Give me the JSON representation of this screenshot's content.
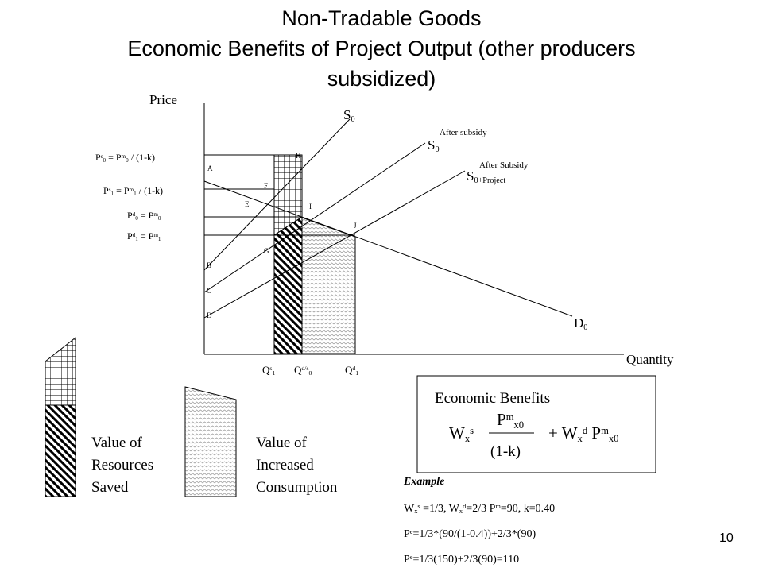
{
  "title": {
    "line1": "Non-Tradable Goods",
    "line2": "Economic Benefits of Project Output (other producers",
    "line3": "subsidized)"
  },
  "axes": {
    "y": "Price",
    "x": "Quantity"
  },
  "curves": {
    "s0": [
      {
        "text": "S"
      },
      {
        "sub": "0"
      }
    ],
    "s0_subsidy": [
      {
        "text": "S"
      },
      {
        "sub": "0"
      }
    ],
    "s0_subsidy_note": "After subsidy",
    "s0_project": [
      {
        "text": "S"
      },
      {
        "sub": "0+Project"
      }
    ],
    "s0_project_note": "After Subsidy",
    "d0": [
      {
        "text": "D"
      },
      {
        "sub": "0"
      }
    ]
  },
  "points": [
    "A",
    "H",
    "F",
    "E",
    "I",
    "J",
    "G",
    "B",
    "C",
    "D"
  ],
  "price_labels": [
    [
      {
        "text": "P"
      },
      {
        "sup": "s"
      },
      {
        "sub": "0"
      },
      {
        "text": " = P"
      },
      {
        "sup": "m"
      },
      {
        "sub": "0"
      },
      {
        "text": " / (1-k)"
      }
    ],
    [
      {
        "text": "P"
      },
      {
        "sup": "s"
      },
      {
        "sub": "1"
      },
      {
        "text": " = P"
      },
      {
        "sup": "m"
      },
      {
        "sub": "1"
      },
      {
        "text": " / (1-k)"
      }
    ],
    [
      {
        "text": "P"
      },
      {
        "sup": "d"
      },
      {
        "sub": "0"
      },
      {
        "text": " = P"
      },
      {
        "sup": "m"
      },
      {
        "sub": "0"
      }
    ],
    [
      {
        "text": "P"
      },
      {
        "sup": "d"
      },
      {
        "sub": "1"
      },
      {
        "text": " = P"
      },
      {
        "sup": "m"
      },
      {
        "sub": "1"
      }
    ]
  ],
  "quantity_labels": [
    [
      {
        "text": "Q"
      },
      {
        "sup": "s"
      },
      {
        "sub": "1"
      }
    ],
    [
      {
        "text": "Q"
      },
      {
        "sup": "d/s"
      },
      {
        "sub": "0"
      }
    ],
    [
      {
        "text": "Q"
      },
      {
        "sup": "d"
      },
      {
        "sub": "1"
      }
    ]
  ],
  "legend": [
    [
      "Value of",
      "Resources",
      "Saved"
    ],
    [
      "Value of",
      "Increased",
      "Consumption"
    ]
  ],
  "benefits": {
    "title": "Economic Benefits",
    "first": [
      {
        "text": "W"
      },
      {
        "sub": "x"
      },
      {
        "sup": "s"
      }
    ],
    "numerator": [
      {
        "text": "P"
      },
      {
        "sup": "m"
      },
      {
        "sub": "x0"
      }
    ],
    "denominator": "(1-k)",
    "rest": [
      {
        "text": "+ W"
      },
      {
        "sub": "x"
      },
      {
        "sup": "d"
      },
      {
        "text": " P"
      },
      {
        "sup": "m"
      },
      {
        "sub": "x0"
      }
    ]
  },
  "example": {
    "heading": "Example",
    "lines": [
      [
        {
          "text": "W"
        },
        {
          "sub": "x"
        },
        {
          "sup": "s"
        },
        {
          "text": " =1/3,  W"
        },
        {
          "sub": "x"
        },
        {
          "sup": "d"
        },
        {
          "text": "=2/3   P"
        },
        {
          "sup": "m"
        },
        {
          "text": "=90,  k=0.40"
        }
      ],
      [
        {
          "text": " P"
        },
        {
          "sup": "e"
        },
        {
          "text": "=1/3*(90/(1-0.4))+2/3*(90)"
        }
      ],
      [
        {
          "text": "P"
        },
        {
          "sup": "e"
        },
        {
          "text": "=1/3(150)+2/3(90)=110"
        }
      ]
    ]
  },
  "page_number": "10"
}
